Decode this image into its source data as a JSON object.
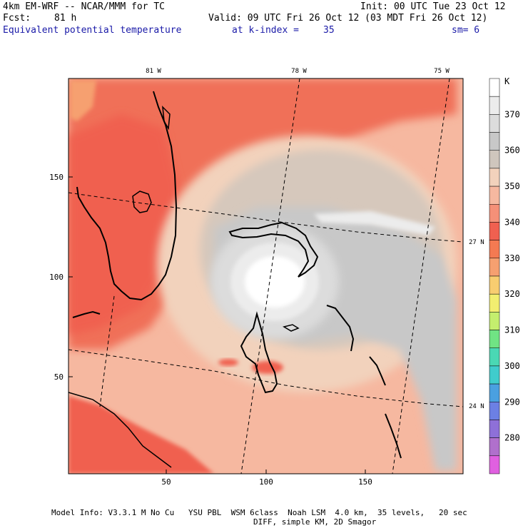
{
  "header": {
    "model": "4km EM-WRF -- NCAR/MMM for TC",
    "init": "Init: 00 UTC Tue 23 Oct 12",
    "fcst_label": "Fcst:",
    "fcst_value": "81 h",
    "valid": "Valid: 09 UTC Fri 26 Oct 12 (03 MDT Fri 26 Oct 12)",
    "field": "Equivalent potential temperature",
    "level_label": "at k-index =",
    "level_value": "35",
    "smoothing": "sm= 6"
  },
  "map": {
    "lon_labels": [
      "81 W",
      "78 W",
      "75 W"
    ],
    "lat_labels": [
      "27 N",
      "24 N"
    ],
    "x_ticks": [
      "50",
      "100",
      "150"
    ],
    "y_ticks": [
      "150",
      "100",
      "50"
    ]
  },
  "legend": {
    "unit": "K",
    "levels": [
      "370",
      "360",
      "350",
      "340",
      "330",
      "320",
      "310",
      "300",
      "290",
      "280"
    ],
    "colors": {
      "c380": "#ffffff",
      "c375": "#ececec",
      "c370": "#dcdcdc",
      "c365": "#c8c8c8",
      "c360": "#cfc6bd",
      "c355": "#f2d2bc",
      "c350": "#f6b8a0",
      "c345": "#f59078",
      "c340": "#f06050",
      "c335": "#f47a52",
      "c330": "#f6a070",
      "c325": "#f8cd70",
      "c320": "#f2ee70",
      "c315": "#c4ee6e",
      "c310": "#70e484",
      "c305": "#4ad8b4",
      "c300": "#40cccc",
      "c295": "#4aa0e0",
      "c290": "#6c80e4",
      "c285": "#8e70d8",
      "c280": "#b070cc",
      "c275": "#e060e0"
    }
  },
  "footer": {
    "line1": "Model Info: V3.3.1 M No Cu   YSU PBL  WSM 6class  Noah LSM  4.0 km,  35 levels,   20 sec",
    "line2": "DIFF, simple KM, 2D Smagor"
  }
}
